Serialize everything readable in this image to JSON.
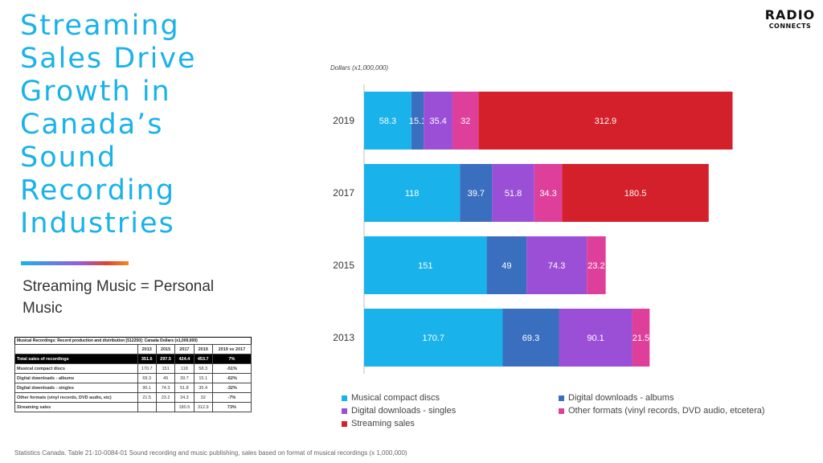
{
  "slide": {
    "title": "Streaming Sales Drive Growth in Canada’s Sound Recording Industries",
    "subtitle": "Streaming Music = Personal Music",
    "logo_top": "RADIO",
    "logo_bottom": "CONNECTS",
    "source": "Statistics Canada. Table 21-10-0084-01 Sound recording and music publishing, sales based on format of musical recordings (x 1,000,000)"
  },
  "chart_data": {
    "type": "bar",
    "orientation": "horizontal",
    "stacked": true,
    "units_label": "Dollars (x1,000,000)",
    "categories": [
      "2019",
      "2017",
      "2015",
      "2013"
    ],
    "series": [
      {
        "name": "Musical compact discs",
        "color": "#1ab2ea",
        "values": [
          58.3,
          118,
          151,
          170.7
        ]
      },
      {
        "name": "Digital downloads - albums",
        "color": "#3a6fbf",
        "values": [
          15.1,
          39.7,
          49,
          69.3
        ]
      },
      {
        "name": "Digital downloads -  singles",
        "color": "#9b4fd6",
        "values": [
          35.4,
          51.8,
          74.3,
          90.1
        ]
      },
      {
        "name": "Other formats (vinyl records, DVD audio, etcetera)",
        "color": "#de3f9a",
        "values": [
          32,
          34.3,
          23.2,
          21.5
        ]
      },
      {
        "name": "Streaming sales",
        "color": "#d4202b",
        "values": [
          312.9,
          180.5,
          null,
          null
        ]
      }
    ],
    "xlim": [
      0,
      475
    ],
    "grid": false,
    "legend_position": "bottom"
  },
  "table": {
    "title": "Musical Recordings: Record production and distribution  [512250]: Canada Dollars (x1,000,000)",
    "headers": [
      "",
      "2013",
      "2015",
      "2017",
      "2019",
      "2019 vs 2017"
    ],
    "rows": [
      [
        "Total sales of recordings",
        "351.6",
        "297.5",
        "424.4",
        "453.7",
        "7%"
      ],
      [
        "Musical compact discs",
        "170.7",
        "151",
        "118",
        "58.3",
        "-51%"
      ],
      [
        "Digital downloads - albums",
        "69.3",
        "49",
        "39.7",
        "15.1",
        "-62%"
      ],
      [
        "Digital downloads - singles",
        "90.1",
        "74.3",
        "51.8",
        "35.4",
        "-32%"
      ],
      [
        "Other formats (vinyl records, DVD audio, etc)",
        "21.5",
        "23.2",
        "34.3",
        "32",
        "-7%"
      ],
      [
        "Streaming sales",
        "",
        "",
        "180.5",
        "312.9",
        "73%"
      ]
    ]
  }
}
